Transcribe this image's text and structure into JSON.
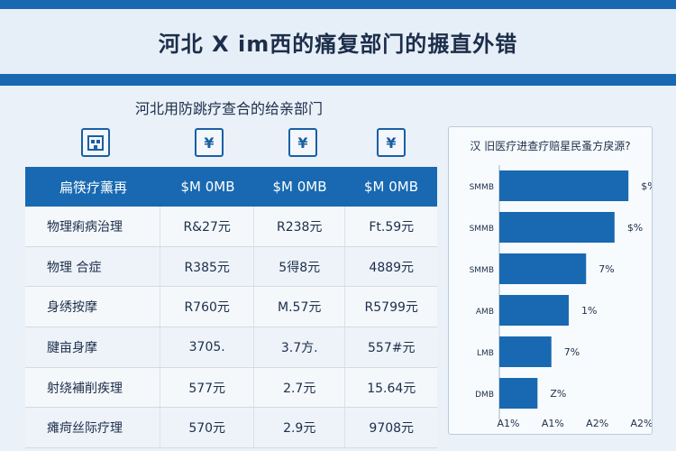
{
  "header": {
    "title": "河北 X im西的痛复部门的搌直外错"
  },
  "subtitle": "河北用防跳疗查合的给亲部门",
  "icons": [
    "building-icon",
    "yen-icon",
    "yen-icon",
    "yen-icon"
  ],
  "table": {
    "headers": [
      "扁筷疗薰再",
      "$M 0MB",
      "$M 0MB",
      "$M 0MB"
    ],
    "rows": [
      [
        "物理痢病治理",
        "R&27元",
        "R238元",
        "Ft.59元"
      ],
      [
        "物理 合症",
        "R385元",
        "5得8元",
        "4889元"
      ],
      [
        "身绣按摩",
        "R760元",
        "M.57元",
        "R5799元"
      ],
      [
        "腱亩身摩",
        "3705.",
        "3.7方.",
        "557#元"
      ],
      [
        "射绕補削疾理",
        "577元",
        "2.7元",
        "15.64元"
      ],
      [
        "瘫疴丝际疗理",
        "570元",
        "2.9元",
        "9708元"
      ]
    ]
  },
  "chart_data": {
    "type": "bar",
    "orientation": "horizontal",
    "title": "汉 旧医疗进查疗赔星民蚤方戾源?",
    "categories": [
      "SMMB",
      "SMMB",
      "SMMB",
      "AMB",
      "LMB",
      "DMB"
    ],
    "values": [
      1.86,
      1.66,
      1.25,
      1.0,
      0.75,
      0.55
    ],
    "data_labels": [
      "$%",
      "$%",
      "7%",
      "1%",
      "7%",
      "Z%"
    ],
    "x_tick_labels": [
      "A1%",
      "A1%",
      "A2%",
      "A2%"
    ],
    "xlim": [
      0,
      2.0
    ],
    "bar_color": "#1869b1"
  }
}
